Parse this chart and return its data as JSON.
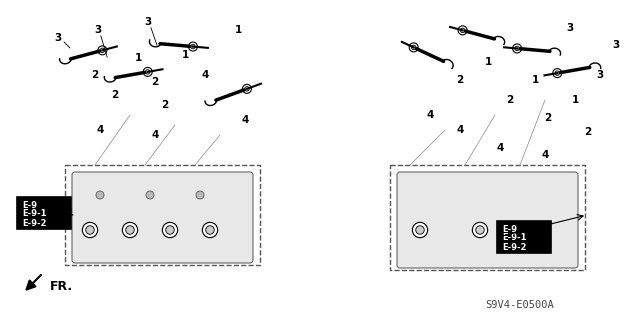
{
  "title": "",
  "bg_color": "#ffffff",
  "diagram_code": "S9V4-E0500A",
  "fr_label": "FR.",
  "ref_labels_left": [
    "E-9",
    "E-9-1",
    "E-9-2"
  ],
  "ref_labels_right": [
    "E-9",
    "E-9-1",
    "E-9-2"
  ],
  "part_numbers": [
    "1",
    "2",
    "3",
    "4"
  ],
  "line_color": "#000000",
  "dashed_color": "#555555",
  "figsize": [
    6.4,
    3.19
  ],
  "dpi": 100
}
